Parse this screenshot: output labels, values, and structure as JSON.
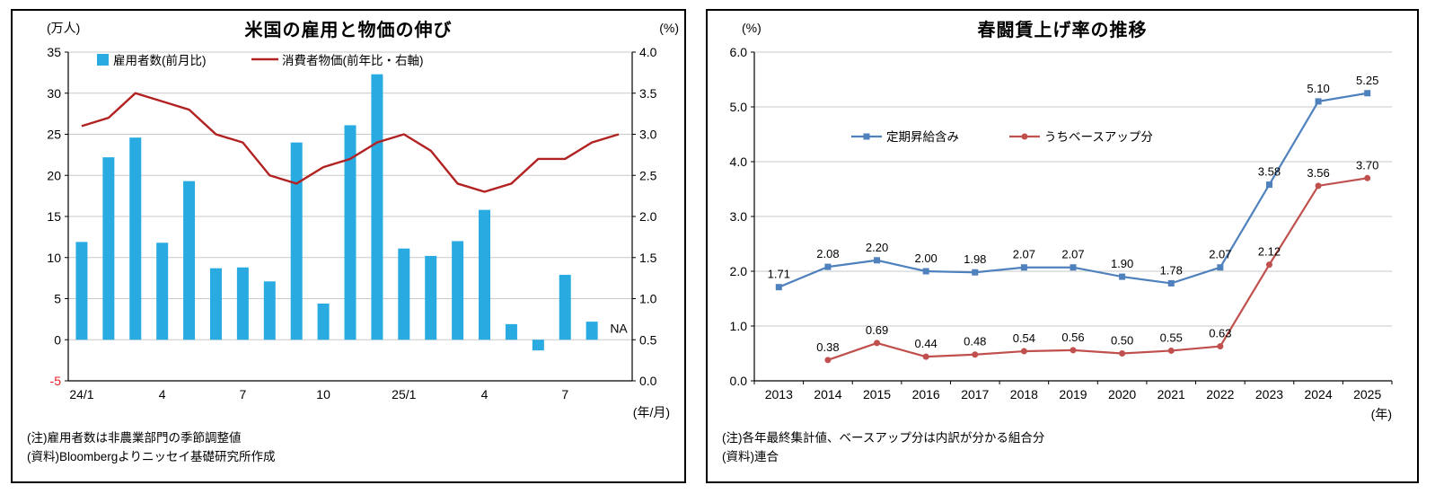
{
  "chart_data": [
    {
      "type": "combo-bar-line",
      "title": "米国の雇用と物価の伸び",
      "left_axis_label": "(万人)",
      "right_axis_label": "(%)",
      "x_axis_label": "(年/月)",
      "left_ylim": [
        -5,
        35
      ],
      "left_ytick_step": 5,
      "right_ylim": [
        0.0,
        4.0
      ],
      "right_ytick_step": 0.5,
      "grid": true,
      "legend_position": "top-inside",
      "negative_tick_color": "#ee1c25",
      "categories": [
        "24/1",
        "24/2",
        "24/3",
        "24/4",
        "24/5",
        "24/6",
        "24/7",
        "24/8",
        "24/9",
        "24/10",
        "24/11",
        "24/12",
        "25/1",
        "25/2",
        "25/3",
        "25/4",
        "25/5",
        "25/6",
        "25/7",
        "25/8",
        "25/9"
      ],
      "x_tick_labels": [
        "24/1",
        "4",
        "7",
        "10",
        "25/1",
        "4",
        "7"
      ],
      "x_tick_positions": [
        0,
        3,
        6,
        9,
        12,
        15,
        18
      ],
      "series": [
        {
          "name": "雇用者数(前月比)",
          "type": "bar",
          "axis": "left",
          "color": "#29abe2",
          "values": [
            11.9,
            22.2,
            24.6,
            11.8,
            19.3,
            8.7,
            8.8,
            7.1,
            24.0,
            4.4,
            26.1,
            32.3,
            11.1,
            10.2,
            12.0,
            15.8,
            1.9,
            -1.3,
            7.9,
            2.2,
            null
          ]
        },
        {
          "name": "消費者物価(前年比・右軸)",
          "type": "line",
          "axis": "right",
          "color": "#b22222",
          "values": [
            3.1,
            3.2,
            3.5,
            3.4,
            3.3,
            3.0,
            2.9,
            2.5,
            2.4,
            2.6,
            2.7,
            2.9,
            3.0,
            2.8,
            2.4,
            2.3,
            2.4,
            2.7,
            2.7,
            2.9,
            3.0
          ]
        }
      ],
      "na_label": "NA",
      "notes": [
        "(注)雇用者数は非農業部門の季節調整値",
        "(資料)Bloombergよりニッセイ基礎研究所作成"
      ]
    },
    {
      "type": "line",
      "title": "春闘賃上げ率の推移",
      "y_axis_label": "(%)",
      "x_axis_label": "(年)",
      "ylim": [
        0.0,
        6.0
      ],
      "ytick_step": 1.0,
      "grid": true,
      "legend_position": "center-inside",
      "categories": [
        "2013",
        "2014",
        "2015",
        "2016",
        "2017",
        "2018",
        "2019",
        "2020",
        "2021",
        "2022",
        "2023",
        "2024",
        "2025"
      ],
      "series": [
        {
          "name": "定期昇給含み",
          "color": "#4f81bd",
          "marker": "square",
          "values": [
            1.71,
            2.08,
            2.2,
            2.0,
            1.98,
            2.07,
            2.07,
            1.9,
            1.78,
            2.07,
            3.58,
            5.1,
            5.25
          ]
        },
        {
          "name": "うちベースアップ分",
          "color": "#c0504d",
          "marker": "circle",
          "values": [
            null,
            0.38,
            0.69,
            0.44,
            0.48,
            0.54,
            0.56,
            0.5,
            0.55,
            0.63,
            2.12,
            3.56,
            3.7
          ]
        }
      ],
      "notes": [
        "(注)各年最終集計値、ベースアップ分は内訳が分かる組合分",
        "(資料)連合"
      ]
    }
  ]
}
